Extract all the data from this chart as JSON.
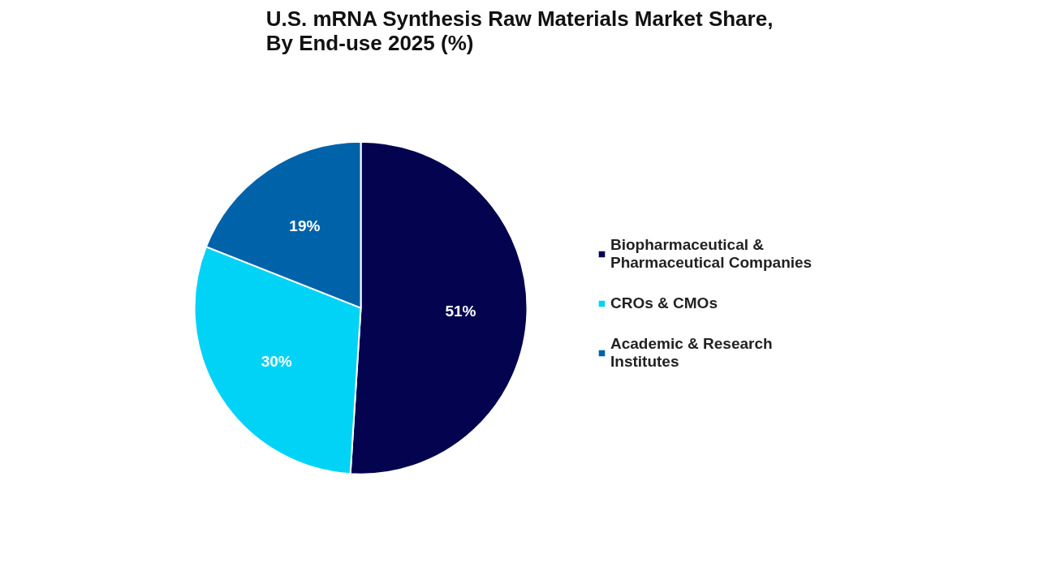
{
  "chart_data": {
    "type": "pie",
    "title": "U.S. mRNA Synthesis Raw Materials Market Share, By End-use 2025 (%)",
    "categories": [
      "Biopharmaceutical & Pharmaceutical Companies",
      "CROs & CMOs",
      "Academic & Research Institutes"
    ],
    "values": [
      51,
      30,
      19
    ],
    "colors": [
      "#03034f",
      "#00d3f5",
      "#0062a9"
    ],
    "value_labels": [
      "51%",
      "30%",
      "19%"
    ],
    "legend": "right"
  }
}
